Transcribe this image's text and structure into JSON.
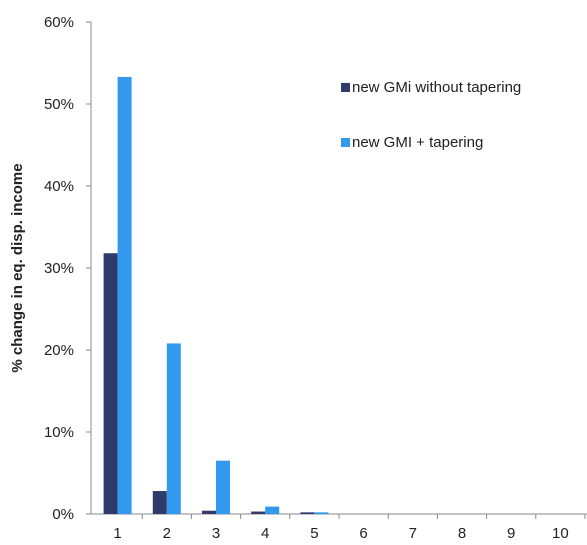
{
  "chart_data": {
    "type": "bar",
    "title": "",
    "xlabel": "",
    "ylabel": "% change in eq. disp. income",
    "categories": [
      "1",
      "2",
      "3",
      "4",
      "5",
      "6",
      "7",
      "8",
      "9",
      "10"
    ],
    "ylim": [
      0,
      60
    ],
    "yticks": [
      "0%",
      "10%",
      "20%",
      "30%",
      "40%",
      "50%",
      "60%"
    ],
    "grid": false,
    "legend_position": "top-right",
    "series": [
      {
        "name": "new GMi without tapering",
        "color": "#2e3b6b",
        "values": [
          31.8,
          2.8,
          0.4,
          0.3,
          0.2,
          0.0,
          0.0,
          0.0,
          0.0,
          0.0
        ]
      },
      {
        "name": "new GMI + tapering",
        "color": "#3399ee",
        "values": [
          53.3,
          20.8,
          6.5,
          0.9,
          0.2,
          0.0,
          0.0,
          0.0,
          0.0,
          0.0
        ]
      }
    ]
  }
}
